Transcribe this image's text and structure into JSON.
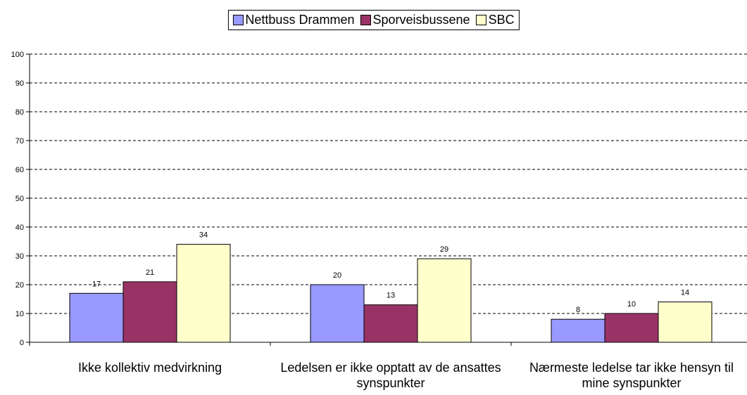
{
  "chart_data": {
    "type": "bar",
    "categories": [
      "Ikke kollektiv medvirkning",
      "Ledelsen er ikke opptatt av de ansattes synspunkter",
      "Nærmeste ledelse tar ikke hensyn til mine synspunkter"
    ],
    "series": [
      {
        "name": "Nettbuss Drammen",
        "color": "#9999ff",
        "values": [
          17,
          20,
          8
        ]
      },
      {
        "name": "Sporveisbussene",
        "color": "#993366",
        "values": [
          21,
          13,
          10
        ]
      },
      {
        "name": "SBC",
        "color": "#ffffcc",
        "values": [
          34,
          29,
          14
        ]
      }
    ],
    "ylim": [
      0,
      100
    ],
    "yticks": [
      0,
      10,
      20,
      30,
      40,
      50,
      60,
      70,
      80,
      90,
      100
    ],
    "grid": true,
    "legend": "top"
  }
}
